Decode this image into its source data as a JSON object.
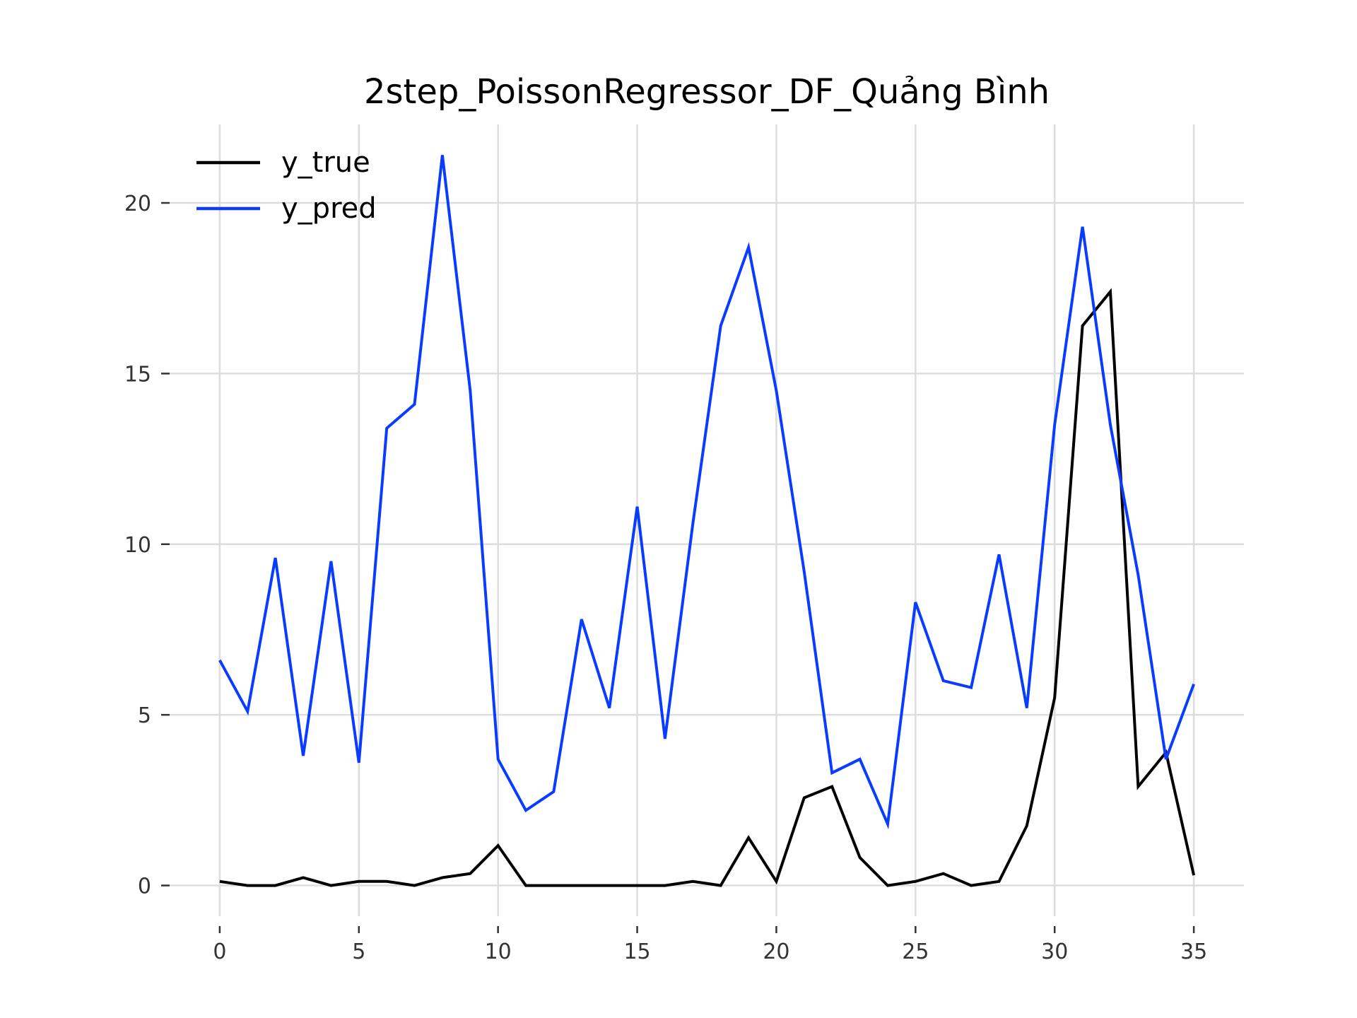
{
  "chart_data": {
    "type": "line",
    "title": "2step_PoissonRegressor_DF_Quảng Bình",
    "xlabel": "",
    "ylabel": "",
    "xlim": [
      -1.8,
      36.8
    ],
    "ylim": [
      -0.9,
      22.3
    ],
    "xticks": [
      0,
      5,
      10,
      15,
      20,
      25,
      30,
      35
    ],
    "yticks": [
      0,
      5,
      10,
      15,
      20
    ],
    "grid": true,
    "legend_position": "top-left",
    "x": [
      0,
      1,
      2,
      3,
      4,
      5,
      6,
      7,
      8,
      9,
      10,
      11,
      12,
      13,
      14,
      15,
      16,
      17,
      18,
      19,
      20,
      21,
      22,
      23,
      24,
      25,
      26,
      27,
      28,
      29,
      30,
      31,
      32,
      33,
      34,
      35
    ],
    "series": [
      {
        "name": "y_true",
        "color": "#000000",
        "values": [
          0.12,
          0,
          0,
          0.23,
          0,
          0.12,
          0.12,
          0,
          0.23,
          0.35,
          1.17,
          0,
          0,
          0,
          0,
          0,
          0,
          0.12,
          0,
          1.4,
          0.12,
          2.57,
          2.9,
          0.82,
          0,
          0.12,
          0.35,
          0,
          0.12,
          1.75,
          5.5,
          16.4,
          17.4,
          2.9,
          3.9,
          0.3
        ]
      },
      {
        "name": "y_pred",
        "color": "#0a3cff",
        "values": [
          6.6,
          5.1,
          9.6,
          3.8,
          9.5,
          3.6,
          13.4,
          14.1,
          21.4,
          14.5,
          3.7,
          2.2,
          2.75,
          7.8,
          5.2,
          11.1,
          4.3,
          10.6,
          16.4,
          18.7,
          14.5,
          9.2,
          3.3,
          3.7,
          1.8,
          8.3,
          6.0,
          5.8,
          9.7,
          5.2,
          13.5,
          19.3,
          13.5,
          9.1,
          3.7,
          5.9
        ]
      }
    ]
  }
}
